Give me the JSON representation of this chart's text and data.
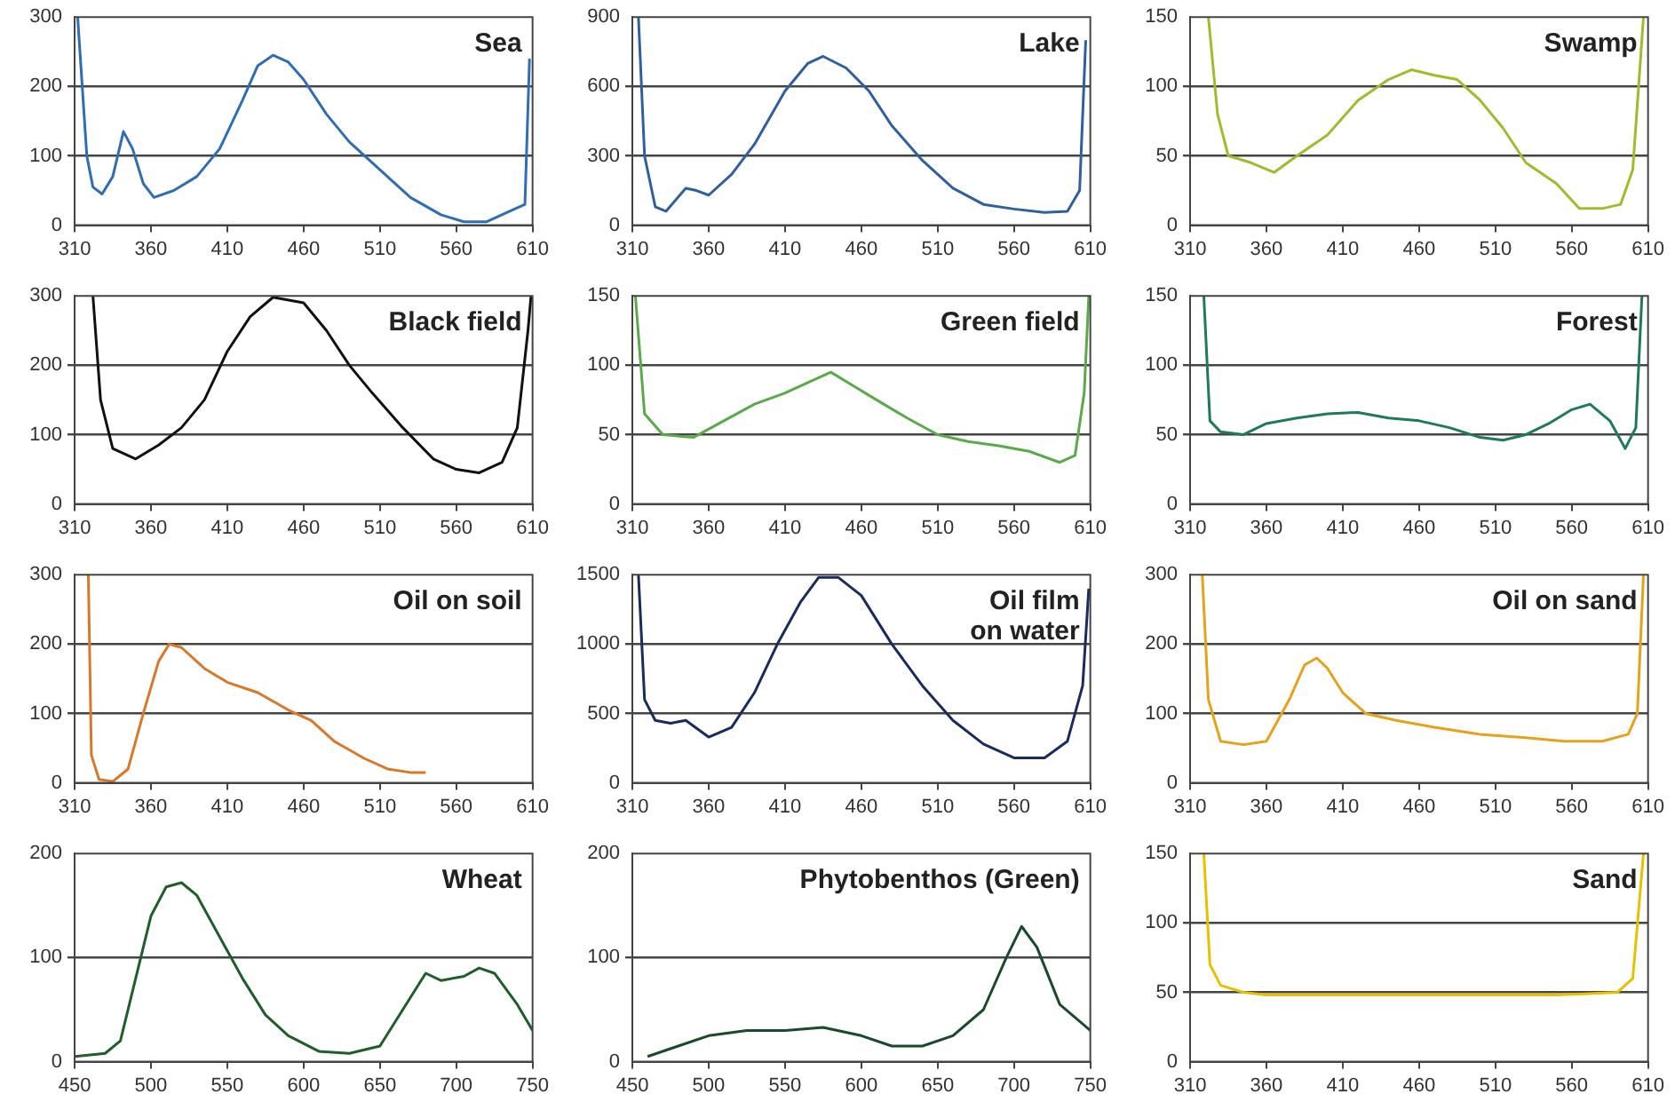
{
  "chart_data": [
    {
      "type": "line",
      "title": "Sea",
      "x": [
        312,
        318,
        322,
        328,
        335,
        342,
        348,
        355,
        362,
        375,
        390,
        405,
        420,
        430,
        440,
        450,
        460,
        475,
        490,
        510,
        530,
        550,
        565,
        580,
        595,
        605,
        608
      ],
      "series": [
        {
          "color": "#2f6db5",
          "values": [
            300,
            100,
            55,
            45,
            70,
            135,
            110,
            60,
            40,
            50,
            70,
            110,
            180,
            230,
            245,
            235,
            210,
            160,
            120,
            80,
            40,
            15,
            5,
            5,
            20,
            30,
            240
          ]
        }
      ],
      "xlim": [
        310,
        610
      ],
      "xticks": [
        310,
        360,
        410,
        460,
        510,
        560,
        610
      ],
      "ylim": [
        0,
        300
      ],
      "yticks": [
        0,
        100,
        200,
        300
      ],
      "grid": "y",
      "marker": "none"
    },
    {
      "type": "line",
      "title": "Lake",
      "x": [
        314,
        318,
        325,
        332,
        345,
        352,
        360,
        375,
        390,
        410,
        425,
        435,
        450,
        465,
        480,
        500,
        520,
        540,
        560,
        580,
        595,
        603,
        607
      ],
      "series": [
        {
          "color": "#2f5f9e",
          "values": [
            900,
            300,
            80,
            60,
            160,
            150,
            130,
            220,
            350,
            580,
            700,
            730,
            680,
            580,
            430,
            280,
            160,
            90,
            70,
            55,
            60,
            150,
            800
          ]
        }
      ],
      "xlim": [
        310,
        610
      ],
      "xticks": [
        310,
        360,
        410,
        460,
        510,
        560,
        610
      ],
      "ylim": [
        0,
        900
      ],
      "yticks": [
        0,
        300,
        600,
        900
      ],
      "grid": "y",
      "marker": "none"
    },
    {
      "type": "line",
      "title": "Swamp",
      "x": [
        322,
        328,
        335,
        350,
        365,
        380,
        400,
        420,
        440,
        455,
        470,
        485,
        500,
        515,
        530,
        550,
        565,
        580,
        592,
        600,
        607
      ],
      "series": [
        {
          "color": "#a5b92c",
          "values": [
            150,
            80,
            50,
            45,
            38,
            50,
            65,
            90,
            105,
            112,
            108,
            105,
            90,
            70,
            45,
            30,
            12,
            12,
            15,
            40,
            150
          ]
        }
      ],
      "xlim": [
        310,
        610
      ],
      "xticks": [
        310,
        360,
        410,
        460,
        510,
        560,
        610
      ],
      "ylim": [
        0,
        150
      ],
      "yticks": [
        0,
        50,
        100,
        150
      ],
      "grid": "y",
      "marker": "none"
    },
    {
      "type": "line",
      "title": "Black field",
      "x": [
        322,
        327,
        335,
        350,
        365,
        380,
        395,
        410,
        425,
        440,
        460,
        475,
        490,
        505,
        525,
        545,
        560,
        575,
        590,
        600,
        607,
        609
      ],
      "series": [
        {
          "color": "#111111",
          "values": [
            300,
            150,
            80,
            65,
            85,
            110,
            150,
            220,
            270,
            298,
            290,
            250,
            200,
            160,
            110,
            65,
            50,
            45,
            60,
            110,
            250,
            300
          ]
        }
      ],
      "xlim": [
        310,
        610
      ],
      "xticks": [
        310,
        360,
        410,
        460,
        510,
        560,
        610
      ],
      "ylim": [
        0,
        300
      ],
      "yticks": [
        0,
        100,
        200,
        300
      ],
      "grid": "y",
      "marker": "none"
    },
    {
      "type": "line",
      "title": "Green field",
      "x": [
        312,
        318,
        330,
        350,
        370,
        390,
        410,
        430,
        440,
        455,
        470,
        490,
        510,
        530,
        550,
        570,
        590,
        600,
        606,
        609
      ],
      "series": [
        {
          "color": "#5aaa4a",
          "values": [
            150,
            65,
            50,
            48,
            60,
            72,
            80,
            90,
            95,
            85,
            75,
            62,
            50,
            45,
            42,
            38,
            30,
            35,
            80,
            150
          ]
        }
      ],
      "xlim": [
        310,
        610
      ],
      "xticks": [
        310,
        360,
        410,
        460,
        510,
        560,
        610
      ],
      "ylim": [
        0,
        150
      ],
      "yticks": [
        0,
        50,
        100,
        150
      ],
      "grid": "y",
      "marker": "none"
    },
    {
      "type": "line",
      "title": "Forest",
      "x": [
        319,
        323,
        330,
        345,
        360,
        380,
        400,
        420,
        440,
        460,
        480,
        500,
        515,
        530,
        545,
        560,
        572,
        585,
        595,
        602,
        606
      ],
      "series": [
        {
          "color": "#1f7a5a",
          "values": [
            150,
            60,
            52,
            50,
            58,
            62,
            65,
            66,
            62,
            60,
            55,
            48,
            46,
            50,
            58,
            68,
            72,
            60,
            40,
            55,
            150
          ]
        }
      ],
      "xlim": [
        310,
        610
      ],
      "xticks": [
        310,
        360,
        410,
        460,
        510,
        560,
        610
      ],
      "ylim": [
        0,
        150
      ],
      "yticks": [
        0,
        50,
        100,
        150
      ],
      "grid": "y",
      "marker": "none"
    },
    {
      "type": "line",
      "title": "Oil on soil",
      "x": [
        319,
        321,
        326,
        335,
        345,
        355,
        365,
        372,
        380,
        395,
        410,
        430,
        450,
        465,
        480,
        500,
        515,
        530,
        540
      ],
      "series": [
        {
          "color": "#d9772a",
          "values": [
            300,
            40,
            5,
            2,
            20,
            100,
            175,
            200,
            195,
            165,
            145,
            130,
            105,
            90,
            60,
            35,
            20,
            15,
            15
          ]
        }
      ],
      "xlim": [
        310,
        610
      ],
      "xticks": [
        310,
        360,
        410,
        460,
        510,
        560,
        610
      ],
      "ylim": [
        0,
        300
      ],
      "yticks": [
        0,
        100,
        200,
        300
      ],
      "grid": "y",
      "marker": "none"
    },
    {
      "type": "line",
      "title": "Oil film\non water",
      "x": [
        314,
        318,
        325,
        335,
        345,
        360,
        375,
        390,
        405,
        420,
        432,
        445,
        460,
        480,
        500,
        520,
        540,
        560,
        580,
        595,
        605,
        609
      ],
      "series": [
        {
          "color": "#1a2c5e",
          "values": [
            1500,
            600,
            450,
            430,
            450,
            330,
            400,
            650,
            1000,
            1300,
            1480,
            1480,
            1350,
            1000,
            700,
            450,
            280,
            180,
            180,
            300,
            700,
            1400
          ]
        }
      ],
      "xlim": [
        310,
        610
      ],
      "xticks": [
        310,
        360,
        410,
        460,
        510,
        560,
        610
      ],
      "ylim": [
        0,
        1500
      ],
      "yticks": [
        0,
        500,
        1000,
        1500
      ],
      "grid": "y",
      "marker": "none"
    },
    {
      "type": "line",
      "title": "Oil on sand",
      "x": [
        318,
        322,
        330,
        345,
        360,
        375,
        385,
        393,
        400,
        410,
        425,
        445,
        470,
        500,
        530,
        555,
        580,
        597,
        603,
        607
      ],
      "series": [
        {
          "color": "#e5a21a",
          "values": [
            300,
            120,
            60,
            55,
            60,
            120,
            170,
            180,
            165,
            130,
            100,
            90,
            80,
            70,
            65,
            60,
            60,
            70,
            100,
            300
          ]
        }
      ],
      "xlim": [
        310,
        610
      ],
      "xticks": [
        310,
        360,
        410,
        460,
        510,
        560,
        610
      ],
      "ylim": [
        0,
        300
      ],
      "yticks": [
        0,
        100,
        200,
        300
      ],
      "grid": "y",
      "marker": "none"
    },
    {
      "type": "line",
      "title": "Wheat",
      "x": [
        450,
        470,
        480,
        490,
        500,
        510,
        520,
        530,
        545,
        560,
        575,
        590,
        610,
        630,
        650,
        665,
        680,
        690,
        705,
        715,
        725,
        740,
        750
      ],
      "series": [
        {
          "color": "#1f5e2a",
          "values": [
            5,
            8,
            20,
            80,
            140,
            168,
            172,
            160,
            120,
            80,
            45,
            25,
            10,
            8,
            15,
            50,
            85,
            78,
            82,
            90,
            85,
            55,
            30
          ]
        }
      ],
      "xlim": [
        450,
        750
      ],
      "xticks": [
        450,
        500,
        550,
        600,
        650,
        700,
        750
      ],
      "ylim": [
        0,
        200
      ],
      "yticks": [
        0,
        100,
        200
      ],
      "grid": "y",
      "marker": "none"
    },
    {
      "type": "line",
      "title": "Phytobenthos (Green)",
      "x": [
        460,
        480,
        500,
        525,
        550,
        575,
        600,
        620,
        640,
        660,
        680,
        695,
        705,
        715,
        730,
        750
      ],
      "series": [
        {
          "color": "#1a4a2a",
          "values": [
            5,
            15,
            25,
            30,
            30,
            33,
            25,
            15,
            15,
            25,
            50,
            100,
            130,
            110,
            55,
            30
          ]
        }
      ],
      "xlim": [
        450,
        750
      ],
      "xticks": [
        450,
        500,
        550,
        600,
        650,
        700,
        750
      ],
      "ylim": [
        0,
        200
      ],
      "yticks": [
        0,
        100,
        200
      ],
      "grid": "y",
      "marker": "none"
    },
    {
      "type": "line",
      "title": "Sand",
      "x": [
        319,
        323,
        330,
        345,
        360,
        400,
        450,
        500,
        550,
        590,
        600,
        607
      ],
      "series": [
        {
          "color": "#e8c000",
          "values": [
            150,
            70,
            55,
            50,
            48,
            48,
            48,
            48,
            48,
            50,
            60,
            150
          ]
        }
      ],
      "xlim": [
        310,
        610
      ],
      "xticks": [
        310,
        360,
        410,
        460,
        510,
        560,
        610
      ],
      "ylim": [
        0,
        150
      ],
      "yticks": [
        0,
        50,
        100,
        150
      ],
      "grid": "y",
      "marker": "none"
    }
  ]
}
